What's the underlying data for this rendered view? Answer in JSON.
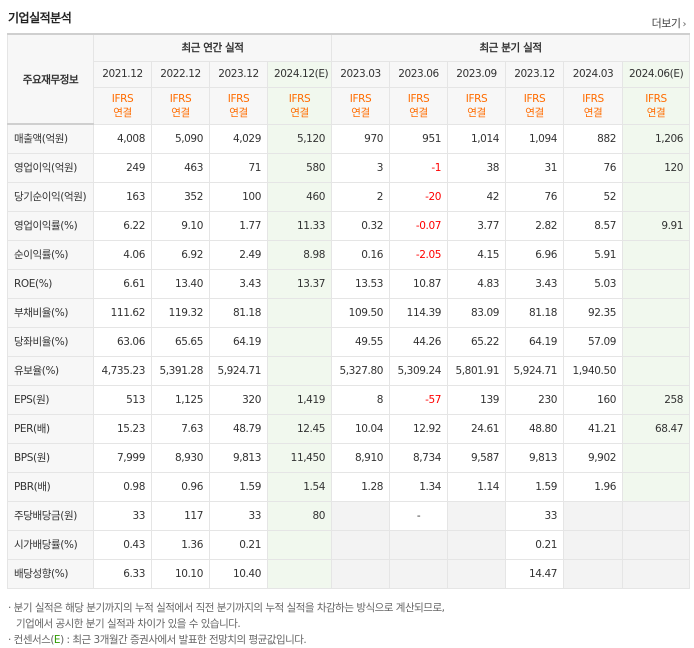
{
  "title": "기업실적분석",
  "more_label": "더보기",
  "header": {
    "row_label": "주요재무정보",
    "annual_group": "최근 연간 실적",
    "quarterly_group": "최근 분기 실적",
    "periods": [
      "2021.12",
      "2022.12",
      "2023.12",
      "2024.12(E)",
      "2023.03",
      "2023.06",
      "2023.09",
      "2023.12",
      "2024.03",
      "2024.06(E)"
    ],
    "basis_top": "IFRS",
    "basis_bottom": "연결"
  },
  "rows": [
    {
      "label": "매출액(억원)",
      "values": [
        "4,008",
        "5,090",
        "4,029",
        "5,120",
        "970",
        "951",
        "1,014",
        "1,094",
        "882",
        "1,206"
      ]
    },
    {
      "label": "영업이익(억원)",
      "values": [
        "249",
        "463",
        "71",
        "580",
        "3",
        "-1",
        "38",
        "31",
        "76",
        "120"
      ]
    },
    {
      "label": "당기순이익(억원)",
      "values": [
        "163",
        "352",
        "100",
        "460",
        "2",
        "-20",
        "42",
        "76",
        "52",
        ""
      ]
    },
    {
      "label": "영업이익률(%)",
      "values": [
        "6.22",
        "9.10",
        "1.77",
        "11.33",
        "0.32",
        "-0.07",
        "3.77",
        "2.82",
        "8.57",
        "9.91"
      ]
    },
    {
      "label": "순이익률(%)",
      "values": [
        "4.06",
        "6.92",
        "2.49",
        "8.98",
        "0.16",
        "-2.05",
        "4.15",
        "6.96",
        "5.91",
        ""
      ]
    },
    {
      "label": "ROE(%)",
      "values": [
        "6.61",
        "13.40",
        "3.43",
        "13.37",
        "13.53",
        "10.87",
        "4.83",
        "3.43",
        "5.03",
        ""
      ]
    },
    {
      "label": "부채비율(%)",
      "values": [
        "111.62",
        "119.32",
        "81.18",
        "",
        "109.50",
        "114.39",
        "83.09",
        "81.18",
        "92.35",
        ""
      ]
    },
    {
      "label": "당좌비율(%)",
      "values": [
        "63.06",
        "65.65",
        "64.19",
        "",
        "49.55",
        "44.26",
        "65.22",
        "64.19",
        "57.09",
        ""
      ]
    },
    {
      "label": "유보율(%)",
      "values": [
        "4,735.23",
        "5,391.28",
        "5,924.71",
        "",
        "5,327.80",
        "5,309.24",
        "5,801.91",
        "5,924.71",
        "1,940.50",
        ""
      ]
    },
    {
      "label": "EPS(원)",
      "values": [
        "513",
        "1,125",
        "320",
        "1,419",
        "8",
        "-57",
        "139",
        "230",
        "160",
        "258"
      ]
    },
    {
      "label": "PER(배)",
      "values": [
        "15.23",
        "7.63",
        "48.79",
        "12.45",
        "10.04",
        "12.92",
        "24.61",
        "48.80",
        "41.21",
        "68.47"
      ]
    },
    {
      "label": "BPS(원)",
      "values": [
        "7,999",
        "8,930",
        "9,813",
        "11,450",
        "8,910",
        "8,734",
        "9,587",
        "9,813",
        "9,902",
        ""
      ]
    },
    {
      "label": "PBR(배)",
      "values": [
        "0.98",
        "0.96",
        "1.59",
        "1.54",
        "1.28",
        "1.34",
        "1.14",
        "1.59",
        "1.96",
        ""
      ]
    },
    {
      "label": "주당배당금(원)",
      "values": [
        "33",
        "117",
        "33",
        "80",
        "",
        "-",
        "",
        "33",
        "",
        ""
      ]
    },
    {
      "label": "시가배당률(%)",
      "values": [
        "0.43",
        "1.36",
        "0.21",
        "",
        "",
        "",
        "",
        "0.21",
        "",
        ""
      ]
    },
    {
      "label": "배당성향(%)",
      "values": [
        "6.33",
        "10.10",
        "10.40",
        "",
        "",
        "",
        "",
        "14.47",
        "",
        ""
      ]
    }
  ],
  "notes": {
    "line1": "· 분기 실적은 해당 분기까지의 누적 실적에서 직전 분기까지의 누적 실적을 차감하는 방식으로 계산되므로,",
    "line2": "기업에서 공시한 분기 실적과 차이가 있을 수 있습니다.",
    "line3_prefix": "· 컨센서스(",
    "line3_e": "E",
    "line3_suffix": ") : 최근 3개월간 증권사에서 발표한 전망치의 평균값입니다."
  },
  "colors": {
    "accent_orange": "#ff6c00",
    "negative": "#ff0000",
    "estimate_bg": "#f1f8ee",
    "consensus_green": "#2e9a00"
  }
}
